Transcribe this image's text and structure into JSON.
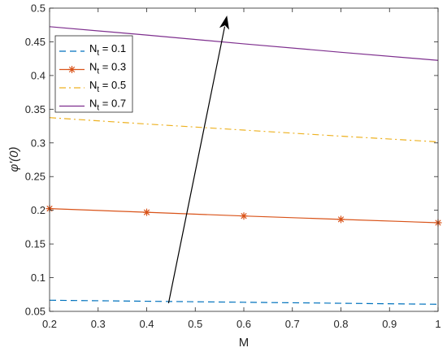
{
  "chart_data": {
    "type": "line",
    "title": "",
    "xlabel": "M",
    "ylabel": "φ'(0)",
    "xlim": [
      0.2,
      1.0
    ],
    "ylim": [
      0.05,
      0.5
    ],
    "xticks": [
      0.2,
      0.3,
      0.4,
      0.5,
      0.6,
      0.7,
      0.8,
      0.9,
      1.0
    ],
    "xtick_labels": [
      "0.2",
      "0.3",
      "0.4",
      "0.5",
      "0.6",
      "0.7",
      "0.8",
      "0.9",
      "1"
    ],
    "yticks": [
      0.05,
      0.1,
      0.15,
      0.2,
      0.25,
      0.3,
      0.35,
      0.4,
      0.45,
      0.5
    ],
    "ytick_labels": [
      "0.05",
      "0.1",
      "0.15",
      "0.2",
      "0.25",
      "0.3",
      "0.35",
      "0.4",
      "0.45",
      "0.5"
    ],
    "grid": false,
    "legend_position": "top-left",
    "x": [
      0.2,
      0.4,
      0.6,
      0.8,
      1.0
    ],
    "series": [
      {
        "name": "N_t = 0.1",
        "legend_main": "N",
        "legend_sub": "t",
        "legend_rest": " = 0.1",
        "values": [
          0.0665,
          0.065,
          0.0635,
          0.062,
          0.0605
        ],
        "color": "#0072BD",
        "line_style": "dashed",
        "marker": "none"
      },
      {
        "name": "N_t = 0.3",
        "legend_main": "N",
        "legend_sub": "t",
        "legend_rest": " = 0.3",
        "values": [
          0.2025,
          0.197,
          0.1915,
          0.1865,
          0.1815
        ],
        "color": "#D95319",
        "line_style": "solid",
        "marker": "asterisk"
      },
      {
        "name": "N_t = 0.5",
        "legend_main": "N",
        "legend_sub": "t",
        "legend_rest": " = 0.5",
        "values": [
          0.3375,
          0.328,
          0.319,
          0.31,
          0.3015
        ],
        "color": "#EDB120",
        "line_style": "dashdot",
        "marker": "none"
      },
      {
        "name": "N_t = 0.7",
        "legend_main": "N",
        "legend_sub": "t",
        "legend_rest": " = 0.7",
        "values": [
          0.4725,
          0.46,
          0.447,
          0.4345,
          0.4225
        ],
        "color": "#7E2F8E",
        "line_style": "solid",
        "marker": "none"
      }
    ],
    "annotations": [
      {
        "type": "arrow",
        "from": [
          0.445,
          0.062
        ],
        "to": [
          0.565,
          0.488
        ],
        "color": "#000000"
      }
    ]
  }
}
